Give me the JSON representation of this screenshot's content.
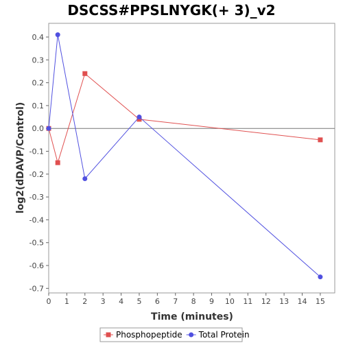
{
  "chart_data": {
    "type": "line",
    "title": "DSCSS#PPSLNYGK(+ 3)_v2",
    "xlabel": "Time (minutes)",
    "ylabel": "log2(dDAVP/Control)",
    "xlim": [
      0,
      15.8
    ],
    "ylim": [
      -0.72,
      0.46
    ],
    "xticks": [
      0,
      1,
      2,
      3,
      4,
      5,
      6,
      7,
      8,
      9,
      10,
      11,
      12,
      13,
      14,
      15
    ],
    "yticks": [
      0.4,
      0.3,
      0.2,
      0.1,
      0.0,
      -0.1,
      -0.2,
      -0.3,
      -0.4,
      -0.5,
      -0.6,
      -0.7
    ],
    "ytick_labels": [
      "0.4",
      "0.3",
      "0.2",
      "0.1",
      "0.0",
      "-0.1",
      "-0.2",
      "-0.3",
      "-0.4",
      "-0.5",
      "-0.6",
      "-0.7"
    ],
    "grid": false,
    "zero_line": true,
    "legend_position": "bottom",
    "series": [
      {
        "name": "Phosphopeptide",
        "color": "#e05050",
        "marker": "square",
        "x": [
          0,
          0.5,
          2,
          5,
          15
        ],
        "y": [
          0.0,
          -0.15,
          0.24,
          0.04,
          -0.05
        ]
      },
      {
        "name": "Total Protein",
        "color": "#5050e0",
        "marker": "circle",
        "x": [
          0,
          0.5,
          2,
          5,
          15
        ],
        "y": [
          0.0,
          0.41,
          -0.22,
          0.05,
          -0.65
        ]
      }
    ]
  }
}
